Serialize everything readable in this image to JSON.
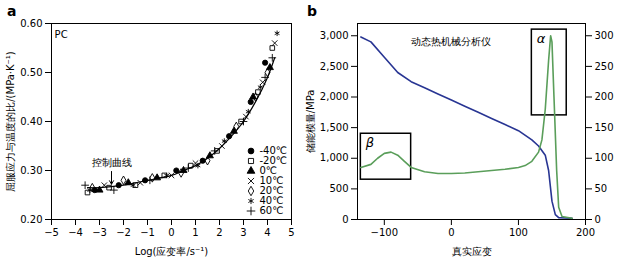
{
  "chart_data": [
    {
      "type": "scatter",
      "label": "a",
      "x_label": "Log(应变率/s⁻¹)",
      "y_label": "屈服应力与温度的比/(MPa·K⁻¹)",
      "xlim": [
        -5,
        5
      ],
      "xticks": [
        -5,
        -4,
        -3,
        -2,
        -1,
        0,
        1,
        2,
        3,
        4,
        5
      ],
      "ylim": [
        0.2,
        0.6
      ],
      "yticks": [
        0.2,
        0.3,
        0.4,
        0.5,
        0.6
      ],
      "legend": "bottom-right",
      "series": [
        {
          "name": "-40℃",
          "color": "#000000",
          "marker": "circle",
          "x": [
            -3.2,
            -2.2,
            -1.1,
            0.2,
            1.3,
            2.4,
            3.3,
            3.9
          ],
          "values": [
            0.26,
            0.27,
            0.28,
            0.3,
            0.32,
            0.37,
            0.44,
            0.52
          ]
        },
        {
          "name": "-20℃",
          "color": "#000000",
          "marker": "square-open",
          "x": [
            -3.5,
            -2.6,
            -1.5,
            -0.3,
            0.8,
            1.9,
            2.9,
            3.6,
            4.2
          ],
          "values": [
            0.255,
            0.265,
            0.27,
            0.29,
            0.31,
            0.34,
            0.4,
            0.46,
            0.55
          ]
        },
        {
          "name": "0℃",
          "color": "#000000",
          "marker": "triangle",
          "x": [
            -3.0,
            -1.8,
            -0.6,
            0.5,
            1.6,
            2.6,
            3.4,
            4.1
          ],
          "values": [
            0.26,
            0.275,
            0.285,
            0.3,
            0.33,
            0.38,
            0.45,
            0.51
          ]
        },
        {
          "name": "10℃",
          "color": "#000000",
          "marker": "times",
          "x": [
            -2.8,
            -1.3,
            0.0,
            1.0,
            2.1,
            3.1,
            3.8,
            4.3
          ],
          "values": [
            0.27,
            0.275,
            0.29,
            0.315,
            0.35,
            0.41,
            0.48,
            0.56
          ]
        },
        {
          "name": "20℃",
          "color": "#000000",
          "marker": "diamond-open",
          "x": [
            -3.3,
            -2.0,
            -0.8,
            0.4,
            1.5,
            2.7,
            3.5,
            4.0
          ],
          "values": [
            0.265,
            0.28,
            0.285,
            0.295,
            0.32,
            0.39,
            0.45,
            0.5
          ]
        },
        {
          "name": "40℃",
          "color": "#000000",
          "marker": "asterisk",
          "x": [
            -3.4,
            -1.6,
            -0.2,
            1.1,
            2.2,
            3.2,
            3.7,
            4.4
          ],
          "values": [
            0.26,
            0.27,
            0.29,
            0.31,
            0.36,
            0.42,
            0.47,
            0.58
          ]
        },
        {
          "name": "60℃",
          "color": "#000000",
          "marker": "plus",
          "x": [
            -3.6,
            -2.4,
            -0.9,
            0.7,
            1.8,
            3.0,
            3.9,
            4.2
          ],
          "values": [
            0.27,
            0.26,
            0.28,
            0.305,
            0.34,
            0.4,
            0.49,
            0.53
          ]
        }
      ],
      "curve": {
        "type": "line",
        "color": "#000000",
        "x": [
          -3.5,
          -3,
          -2,
          -1,
          0,
          0.5,
          1,
          1.5,
          2,
          2.5,
          3,
          3.5,
          4,
          4.3
        ],
        "values": [
          0.265,
          0.265,
          0.27,
          0.28,
          0.29,
          0.3,
          0.31,
          0.325,
          0.345,
          0.37,
          0.4,
          0.44,
          0.49,
          0.53
        ]
      },
      "annotations": [
        {
          "text": "PC",
          "x": -4.6,
          "y": 0.57
        },
        {
          "text": "控制曲线",
          "x": -2.5,
          "y": 0.31,
          "arrow": {
            "x1": -2.5,
            "y1": 0.298,
            "x2": -2.5,
            "y2": 0.272
          }
        }
      ]
    },
    {
      "type": "line",
      "label": "b",
      "x_label": "真实应变",
      "y_label": "储能模量/MPa",
      "xlim": [
        -140,
        200
      ],
      "xticks": [
        -100,
        0,
        100,
        200
      ],
      "ylim": [
        0,
        3200
      ],
      "yticks": [
        0,
        500,
        1000,
        1500,
        2000,
        2500,
        3000
      ],
      "y2lim": [
        0,
        320
      ],
      "y2ticks": [
        0,
        50,
        100,
        150,
        200,
        250,
        300
      ],
      "series": [
        {
          "color": "#283593",
          "axis": "y",
          "x": [
            -135,
            -120,
            -100,
            -80,
            -60,
            -40,
            -20,
            0,
            20,
            40,
            60,
            80,
            100,
            120,
            130,
            140,
            145,
            150,
            155,
            160,
            180
          ],
          "values": [
            2980,
            2900,
            2650,
            2400,
            2250,
            2150,
            2050,
            1950,
            1850,
            1750,
            1650,
            1550,
            1450,
            1300,
            1200,
            1050,
            800,
            300,
            80,
            30,
            20
          ]
        },
        {
          "color": "#5a9e5a",
          "axis": "y2",
          "x": [
            -135,
            -120,
            -110,
            -100,
            -90,
            -80,
            -70,
            -60,
            -40,
            -20,
            0,
            20,
            40,
            60,
            80,
            100,
            110,
            120,
            130,
            135,
            140,
            145,
            148,
            150,
            153,
            157,
            160,
            165,
            180
          ],
          "values": [
            85,
            90,
            100,
            108,
            110,
            105,
            95,
            85,
            78,
            75,
            75,
            76,
            78,
            80,
            82,
            85,
            88,
            95,
            110,
            130,
            180,
            260,
            300,
            290,
            200,
            80,
            20,
            5,
            2
          ]
        }
      ],
      "boxes": [
        {
          "label": "β",
          "x": [
            -135,
            -60
          ],
          "y": [
            650,
            1400
          ]
        },
        {
          "label": "α",
          "x": [
            120,
            172
          ],
          "y": [
            1700,
            3100
          ]
        }
      ],
      "annotations": [
        {
          "text": "动态热机械分析仪",
          "x": 0,
          "y": 2900
        }
      ]
    }
  ]
}
